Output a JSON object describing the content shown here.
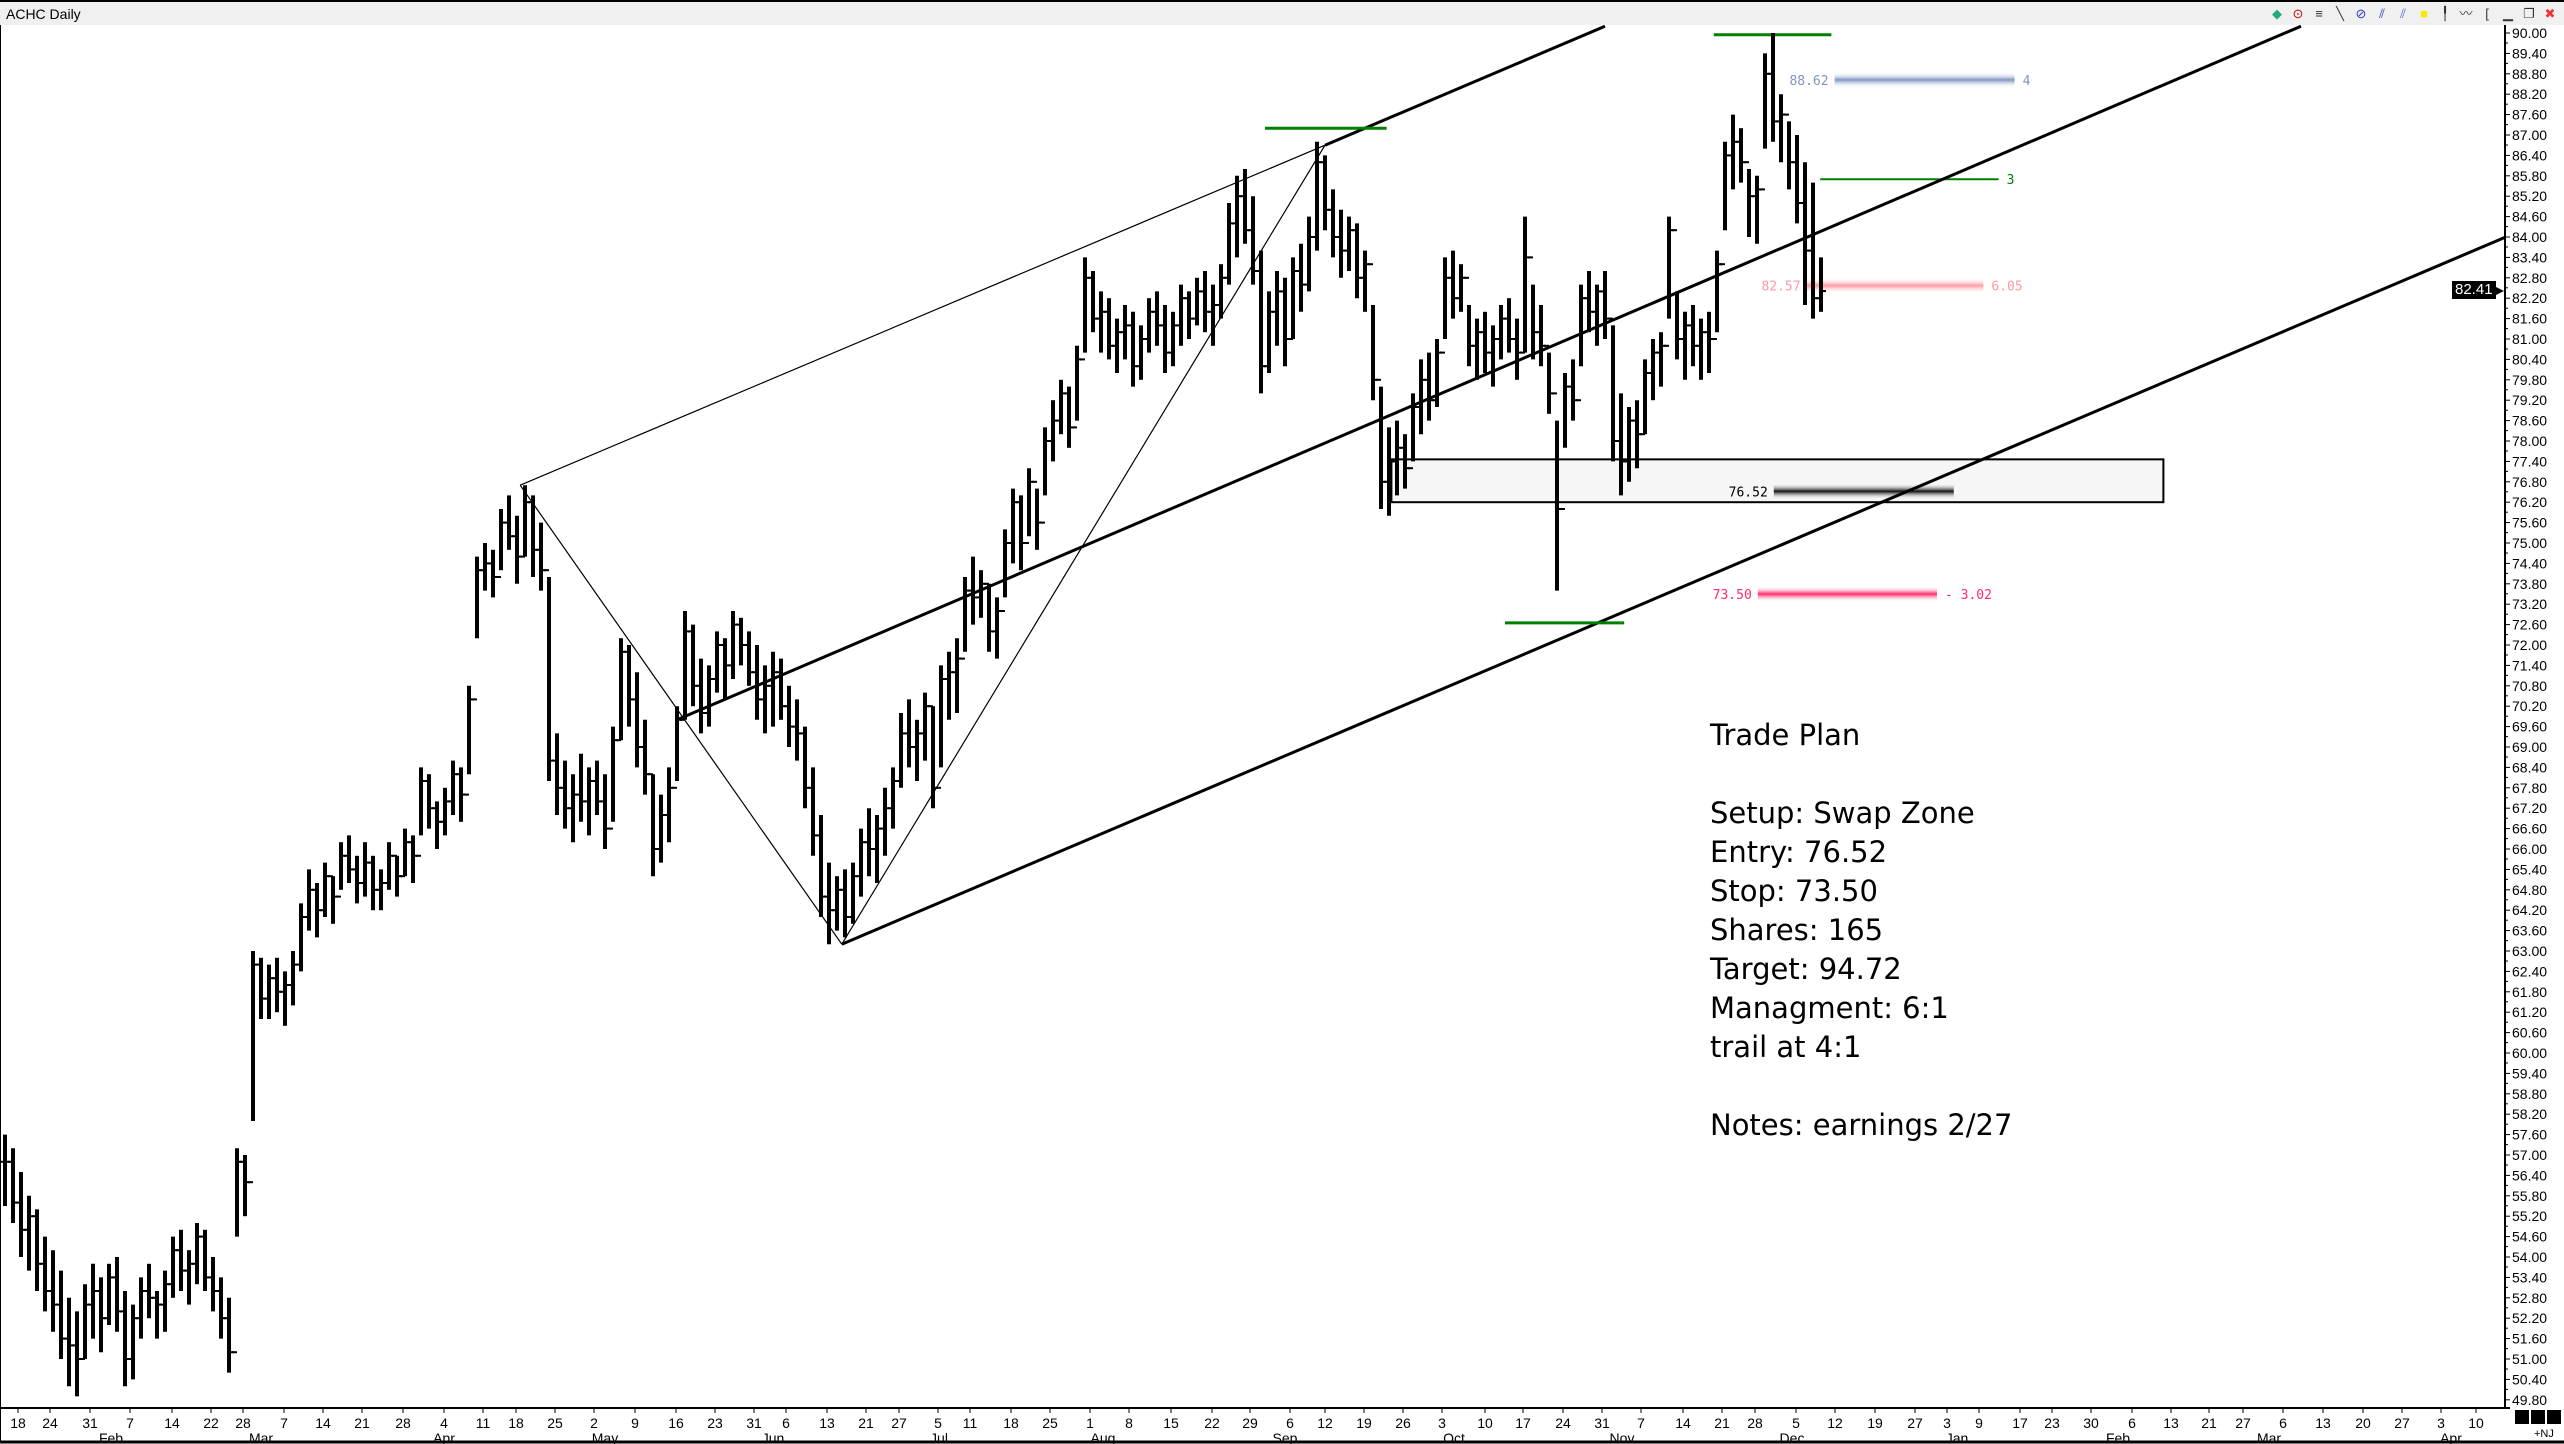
{
  "window": {
    "title": "ACHC Daily"
  },
  "toolbar": {
    "icons": [
      "chart-type-icon",
      "crosshair-icon",
      "text-annotation-icon",
      "trendline-icon",
      "fibonacci-icon",
      "pitchfork-icon",
      "channel-icon",
      "highlight-icon",
      "cursor-icon",
      "zigzag-icon",
      "bracket-icon",
      "minimize-icon",
      "restore-icon",
      "close-icon"
    ]
  },
  "colors": {
    "green_line": "#008000",
    "target_bar": "#7f96c0",
    "trail_bar": "#ff9aa2",
    "entry_bar": "#111111",
    "stop_bar": "#ff2a6a",
    "zone_fill": "#f6f6f6"
  },
  "trade_plan": {
    "title": "Trade Plan",
    "setup": "Setup: Swap Zone",
    "entry": "Entry: 76.52",
    "stop": "Stop: 73.50",
    "shares": "Shares: 165",
    "target": "Target: 94.72",
    "management": "Managment: 6:1",
    "trail": "trail at 4:1",
    "notes": "Notes: earnings 2/27"
  },
  "last_price": "82.41",
  "footer": {
    "tag": "+NJ"
  },
  "chart_data": {
    "type": "ohlc",
    "symbol": "ACHC",
    "interval": "Daily",
    "ylim": [
      49.8,
      90.0
    ],
    "y_ticks": [
      "90.00",
      "89.40",
      "88.80",
      "88.20",
      "87.60",
      "87.00",
      "86.40",
      "85.80",
      "85.20",
      "84.60",
      "84.00",
      "83.40",
      "82.80",
      "82.20",
      "81.60",
      "81.00",
      "80.40",
      "79.80",
      "79.20",
      "78.60",
      "78.00",
      "77.40",
      "76.80",
      "76.20",
      "75.60",
      "75.00",
      "74.40",
      "73.80",
      "73.20",
      "72.60",
      "72.00",
      "71.40",
      "70.80",
      "70.20",
      "69.60",
      "69.00",
      "68.40",
      "67.80",
      "67.20",
      "66.60",
      "66.00",
      "65.40",
      "64.80",
      "64.20",
      "63.60",
      "63.00",
      "62.40",
      "61.80",
      "61.20",
      "60.60",
      "60.00",
      "59.40",
      "58.80",
      "58.20",
      "57.60",
      "57.00",
      "56.40",
      "55.80",
      "55.20",
      "54.60",
      "54.00",
      "53.40",
      "52.80",
      "52.20",
      "51.60",
      "51.00",
      "50.40",
      "49.80"
    ],
    "x_day_labels": [
      "18",
      "24",
      "31",
      "7",
      "14",
      "22",
      "28",
      "7",
      "14",
      "21",
      "28",
      "4",
      "11",
      "18",
      "25",
      "2",
      "9",
      "16",
      "23",
      "31",
      "6",
      "13",
      "21",
      "27",
      "5",
      "11",
      "18",
      "25",
      "1",
      "8",
      "15",
      "22",
      "29",
      "6",
      "12",
      "19",
      "26",
      "3",
      "10",
      "17",
      "24",
      "31",
      "7",
      "14",
      "21",
      "28",
      "5",
      "12",
      "19",
      "27",
      "3",
      "9",
      "17",
      "23",
      "30",
      "6",
      "13",
      "21",
      "27",
      "6",
      "13",
      "20",
      "27",
      "3",
      "10"
    ],
    "x_month_labels": [
      "Feb",
      "Mar",
      "Apr",
      "May",
      "Jun",
      "Jul",
      "Aug",
      "Sep",
      "Oct",
      "Nov",
      "Dec",
      "Jan",
      "Feb",
      "Mar",
      "Apr"
    ],
    "bars_hlc": [
      [
        57.6,
        55.5,
        56.8
      ],
      [
        57.2,
        55.0,
        55.6
      ],
      [
        56.5,
        54.0,
        54.8
      ],
      [
        55.8,
        53.6,
        55.2
      ],
      [
        55.4,
        53.0,
        53.8
      ],
      [
        54.6,
        52.4,
        53.0
      ],
      [
        54.2,
        51.8,
        52.6
      ],
      [
        53.6,
        51.0,
        51.6
      ],
      [
        52.8,
        50.2,
        51.4
      ],
      [
        52.4,
        49.9,
        51.0
      ],
      [
        53.2,
        51.0,
        52.6
      ],
      [
        53.8,
        51.6,
        53.0
      ],
      [
        53.4,
        51.2,
        52.2
      ],
      [
        53.8,
        52.0,
        53.4
      ],
      [
        54.0,
        51.8,
        52.4
      ],
      [
        53.0,
        50.2,
        51.0
      ],
      [
        52.6,
        50.4,
        52.2
      ],
      [
        53.4,
        51.6,
        53.0
      ],
      [
        53.8,
        52.2,
        52.8
      ],
      [
        53.0,
        51.6,
        52.6
      ],
      [
        53.6,
        51.8,
        53.2
      ],
      [
        54.6,
        52.8,
        54.2
      ],
      [
        54.8,
        53.0,
        53.6
      ],
      [
        54.2,
        52.6,
        53.8
      ],
      [
        55.0,
        53.2,
        54.6
      ],
      [
        54.8,
        53.0,
        53.4
      ],
      [
        54.0,
        52.4,
        53.0
      ],
      [
        53.4,
        51.6,
        52.2
      ],
      [
        52.8,
        50.6,
        51.2
      ],
      [
        57.2,
        54.6,
        56.8
      ],
      [
        57.0,
        55.2,
        56.2
      ],
      [
        63.0,
        58.0,
        62.6
      ],
      [
        62.8,
        61.0,
        61.6
      ],
      [
        62.6,
        61.0,
        62.2
      ],
      [
        62.8,
        61.2,
        61.8
      ],
      [
        62.4,
        60.8,
        62.0
      ],
      [
        63.0,
        61.4,
        62.6
      ],
      [
        64.4,
        62.4,
        64.0
      ],
      [
        65.4,
        63.6,
        64.8
      ],
      [
        65.0,
        63.4,
        64.2
      ],
      [
        65.6,
        64.0,
        65.2
      ],
      [
        65.2,
        63.8,
        64.6
      ],
      [
        66.2,
        64.8,
        65.8
      ],
      [
        66.4,
        65.0,
        65.4
      ],
      [
        65.8,
        64.4,
        65.0
      ],
      [
        66.2,
        64.6,
        65.6
      ],
      [
        65.8,
        64.2,
        64.8
      ],
      [
        65.4,
        64.2,
        65.0
      ],
      [
        66.2,
        64.8,
        65.8
      ],
      [
        65.8,
        64.6,
        65.2
      ],
      [
        66.6,
        65.2,
        66.2
      ],
      [
        66.4,
        65.0,
        65.8
      ],
      [
        68.4,
        66.4,
        68.0
      ],
      [
        68.2,
        66.6,
        67.2
      ],
      [
        67.4,
        66.0,
        66.8
      ],
      [
        67.8,
        66.4,
        67.4
      ],
      [
        68.6,
        67.0,
        68.2
      ],
      [
        68.4,
        66.8,
        67.6
      ],
      [
        70.8,
        68.2,
        70.4
      ],
      [
        74.6,
        72.2,
        74.2
      ],
      [
        75.0,
        73.6,
        74.4
      ],
      [
        74.8,
        73.4,
        74.0
      ],
      [
        76.0,
        74.2,
        75.6
      ],
      [
        76.4,
        74.8,
        75.2
      ],
      [
        75.8,
        73.8,
        74.6
      ],
      [
        76.7,
        74.6,
        76.2
      ],
      [
        76.4,
        74.0,
        74.8
      ],
      [
        75.6,
        73.6,
        74.2
      ],
      [
        74.0,
        68.0,
        68.6
      ],
      [
        69.4,
        67.0,
        67.8
      ],
      [
        68.6,
        66.6,
        67.2
      ],
      [
        68.2,
        66.2,
        67.6
      ],
      [
        68.8,
        66.8,
        67.4
      ],
      [
        68.4,
        66.4,
        68.0
      ],
      [
        68.6,
        67.0,
        67.4
      ],
      [
        68.2,
        66.0,
        66.6
      ],
      [
        69.6,
        66.8,
        69.2
      ],
      [
        72.2,
        69.2,
        71.8
      ],
      [
        72.0,
        69.6,
        70.4
      ],
      [
        71.2,
        68.4,
        69.0
      ],
      [
        69.8,
        67.6,
        68.2
      ],
      [
        68.2,
        65.2,
        66.0
      ],
      [
        67.6,
        65.6,
        67.0
      ],
      [
        68.4,
        66.2,
        67.8
      ],
      [
        70.2,
        68.0,
        69.8
      ],
      [
        73.0,
        69.8,
        72.4
      ],
      [
        72.6,
        70.2,
        70.8
      ],
      [
        71.6,
        69.4,
        70.0
      ],
      [
        71.4,
        69.6,
        71.0
      ],
      [
        72.4,
        70.6,
        72.0
      ],
      [
        72.2,
        70.4,
        71.4
      ],
      [
        73.0,
        71.0,
        72.6
      ],
      [
        72.8,
        71.4,
        72.0
      ],
      [
        72.4,
        70.8,
        71.2
      ],
      [
        72.0,
        69.8,
        70.4
      ],
      [
        71.4,
        69.4,
        70.8
      ],
      [
        71.8,
        69.6,
        71.2
      ],
      [
        71.6,
        69.8,
        70.2
      ],
      [
        70.8,
        69.0,
        69.6
      ],
      [
        70.4,
        68.6,
        69.4
      ],
      [
        69.6,
        67.2,
        67.8
      ],
      [
        68.4,
        65.8,
        66.4
      ],
      [
        67.0,
        64.0,
        64.6
      ],
      [
        65.6,
        63.2,
        64.2
      ],
      [
        65.2,
        63.6,
        64.8
      ],
      [
        65.4,
        63.4,
        64.0
      ],
      [
        65.6,
        63.8,
        65.2
      ],
      [
        66.6,
        64.6,
        66.2
      ],
      [
        67.2,
        65.2,
        66.0
      ],
      [
        67.0,
        65.0,
        66.6
      ],
      [
        67.8,
        65.8,
        67.2
      ],
      [
        68.4,
        66.6,
        68.0
      ],
      [
        70.0,
        67.8,
        69.4
      ],
      [
        70.4,
        68.4,
        69.0
      ],
      [
        69.8,
        68.0,
        69.4
      ],
      [
        70.6,
        68.6,
        70.2
      ],
      [
        70.2,
        67.2,
        67.8
      ],
      [
        71.4,
        68.4,
        71.0
      ],
      [
        71.8,
        69.8,
        71.2
      ],
      [
        72.2,
        70.0,
        71.6
      ],
      [
        74.0,
        71.8,
        73.6
      ],
      [
        74.6,
        72.6,
        73.4
      ],
      [
        74.2,
        72.8,
        73.8
      ],
      [
        73.8,
        71.8,
        72.4
      ],
      [
        73.4,
        71.6,
        73.0
      ],
      [
        75.4,
        73.4,
        75.0
      ],
      [
        76.6,
        74.4,
        76.2
      ],
      [
        76.4,
        74.2,
        75.0
      ],
      [
        77.2,
        75.2,
        76.8
      ],
      [
        76.6,
        74.8,
        75.6
      ],
      [
        78.4,
        76.4,
        78.0
      ],
      [
        79.2,
        77.4,
        78.6
      ],
      [
        79.8,
        78.2,
        79.4
      ],
      [
        79.6,
        77.8,
        78.4
      ],
      [
        80.8,
        78.6,
        80.4
      ],
      [
        83.4,
        80.6,
        82.8
      ],
      [
        83.0,
        81.2,
        81.6
      ],
      [
        82.4,
        80.6,
        81.8
      ],
      [
        82.2,
        80.4,
        80.8
      ],
      [
        81.6,
        80.0,
        81.2
      ],
      [
        82.0,
        80.4,
        81.4
      ],
      [
        81.8,
        79.6,
        80.2
      ],
      [
        81.4,
        79.8,
        81.0
      ],
      [
        82.2,
        80.6,
        81.8
      ],
      [
        82.4,
        80.8,
        81.4
      ],
      [
        82.0,
        80.0,
        80.6
      ],
      [
        81.8,
        80.2,
        81.4
      ],
      [
        82.6,
        80.8,
        82.2
      ],
      [
        82.4,
        81.0,
        81.6
      ],
      [
        82.8,
        81.4,
        82.4
      ],
      [
        83.0,
        81.2,
        81.8
      ],
      [
        82.6,
        80.8,
        82.0
      ],
      [
        83.2,
        81.6,
        82.8
      ],
      [
        85.0,
        82.6,
        84.4
      ],
      [
        85.8,
        83.4,
        85.2
      ],
      [
        86.0,
        83.8,
        84.2
      ],
      [
        85.2,
        82.6,
        83.0
      ],
      [
        83.6,
        79.4,
        80.2
      ],
      [
        82.4,
        80.0,
        81.8
      ],
      [
        83.0,
        80.8,
        82.4
      ],
      [
        82.8,
        80.2,
        81.0
      ],
      [
        83.4,
        81.0,
        83.0
      ],
      [
        83.8,
        81.8,
        82.6
      ],
      [
        84.6,
        82.4,
        84.0
      ],
      [
        86.8,
        83.6,
        86.2
      ],
      [
        86.4,
        84.2,
        84.8
      ],
      [
        85.4,
        83.4,
        84.0
      ],
      [
        84.8,
        82.8,
        83.6
      ],
      [
        84.6,
        83.0,
        84.2
      ],
      [
        84.4,
        82.2,
        82.8
      ],
      [
        83.6,
        81.8,
        83.2
      ],
      [
        82.0,
        79.2,
        79.8
      ],
      [
        79.6,
        76.0,
        76.8
      ],
      [
        78.4,
        75.8,
        77.4
      ],
      [
        78.6,
        76.4,
        77.8
      ],
      [
        78.2,
        76.6,
        77.2
      ],
      [
        79.4,
        77.4,
        79.0
      ],
      [
        80.4,
        78.2,
        79.8
      ],
      [
        80.6,
        78.6,
        79.2
      ],
      [
        81.0,
        79.0,
        80.6
      ],
      [
        83.4,
        81.0,
        82.8
      ],
      [
        83.6,
        81.6,
        82.2
      ],
      [
        83.2,
        81.8,
        82.8
      ],
      [
        82.0,
        80.2,
        80.8
      ],
      [
        81.6,
        79.8,
        81.2
      ],
      [
        81.8,
        80.0,
        80.6
      ],
      [
        81.4,
        79.6,
        81.0
      ],
      [
        82.0,
        80.4,
        81.6
      ],
      [
        82.2,
        80.6,
        81.0
      ],
      [
        81.6,
        79.8,
        80.6
      ],
      [
        84.6,
        80.6,
        83.4
      ],
      [
        82.6,
        80.4,
        81.2
      ],
      [
        82.0,
        80.2,
        80.8
      ],
      [
        80.6,
        78.8,
        79.4
      ],
      [
        78.6,
        73.6,
        76.0
      ],
      [
        80.0,
        77.8,
        79.6
      ],
      [
        80.4,
        78.6,
        79.2
      ],
      [
        82.6,
        80.2,
        82.2
      ],
      [
        83.0,
        81.2,
        81.8
      ],
      [
        82.6,
        80.8,
        82.4
      ],
      [
        83.0,
        81.0,
        81.6
      ],
      [
        81.4,
        77.4,
        78.0
      ],
      [
        79.4,
        76.4,
        77.4
      ],
      [
        79.0,
        76.8,
        78.6
      ],
      [
        79.2,
        77.2,
        78.2
      ],
      [
        80.4,
        78.2,
        80.0
      ],
      [
        81.0,
        79.2,
        80.6
      ],
      [
        81.2,
        79.6,
        80.8
      ],
      [
        84.6,
        81.6,
        84.2
      ],
      [
        82.4,
        80.4,
        81.0
      ],
      [
        81.8,
        79.8,
        81.4
      ],
      [
        82.0,
        80.2,
        80.8
      ],
      [
        81.6,
        79.8,
        81.2
      ],
      [
        81.8,
        80.0,
        81.0
      ],
      [
        83.6,
        81.2,
        83.2
      ],
      [
        86.8,
        84.2,
        86.4
      ],
      [
        87.6,
        85.4,
        86.8
      ],
      [
        87.2,
        85.6,
        86.2
      ],
      [
        86.0,
        84.0,
        85.2
      ],
      [
        85.8,
        83.8,
        85.4
      ],
      [
        89.4,
        86.6,
        88.8
      ],
      [
        90.0,
        86.8,
        87.4
      ],
      [
        88.2,
        86.2,
        87.6
      ],
      [
        87.4,
        85.4,
        86.2
      ],
      [
        87.0,
        84.4,
        85.0
      ],
      [
        86.2,
        82.0,
        83.6
      ],
      [
        85.6,
        81.6,
        82.2
      ],
      [
        83.4,
        81.8,
        82.41
      ]
    ],
    "trendlines": [
      {
        "name": "pitchfork-upper-thin",
        "from": [
          64.4,
          76.7
        ],
        "to": [
          165,
          86.7
        ],
        "weight": "thin"
      },
      {
        "name": "pitchfork-upper",
        "from": [
          165,
          86.7
        ],
        "to": [
          200,
          90.2
        ],
        "weight": "thick"
      },
      {
        "name": "pitchfork-median",
        "from": [
          84,
          69.8
        ],
        "to": [
          287,
          90.2
        ],
        "weight": "thick"
      },
      {
        "name": "pitchfork-lower",
        "from": [
          104.6,
          63.2
        ],
        "to": [
          312.6,
          84.0
        ],
        "weight": "thick"
      },
      {
        "name": "pivot-leg-a",
        "from": [
          64.4,
          76.7
        ],
        "to": [
          104.6,
          63.2
        ],
        "weight": "thin"
      },
      {
        "name": "pivot-leg-b",
        "from": [
          104.6,
          63.2
        ],
        "to": [
          165,
          86.7
        ],
        "weight": "thin"
      }
    ],
    "pivot_marks": [
      {
        "from": 157.5,
        "to": 172.7,
        "price": 87.2
      },
      {
        "from": 213.6,
        "to": 228.3,
        "price": 89.95
      },
      {
        "from": 187.5,
        "to": 202.4,
        "price": 72.65
      }
    ],
    "swap_zone": {
      "from": 173.3,
      "to": 269.8,
      "top": 77.46,
      "bottom": 76.2
    },
    "levels": [
      {
        "name": "target",
        "price": 88.62,
        "label": "88.62",
        "tag": "4",
        "from": 228.7,
        "to": 251.2,
        "color": "#7f96c0"
      },
      {
        "name": "scale-level",
        "price": 85.7,
        "label": "",
        "tag": "3",
        "from": 226.9,
        "to": 249.2,
        "color": "#008000"
      },
      {
        "name": "trail",
        "price": 82.57,
        "label": "82.57",
        "tag": "6.05",
        "from": 225.2,
        "to": 247.3,
        "color": "#ff9aa2"
      },
      {
        "name": "entry",
        "price": 76.52,
        "label": "76.52",
        "tag": "",
        "from": 221.1,
        "to": 243.6,
        "color": "#111111"
      },
      {
        "name": "stop",
        "price": 73.5,
        "label": "73.50",
        "tag": "- 3.02",
        "from": 219.1,
        "to": 241.5,
        "color": "#ff2a6a"
      }
    ]
  }
}
